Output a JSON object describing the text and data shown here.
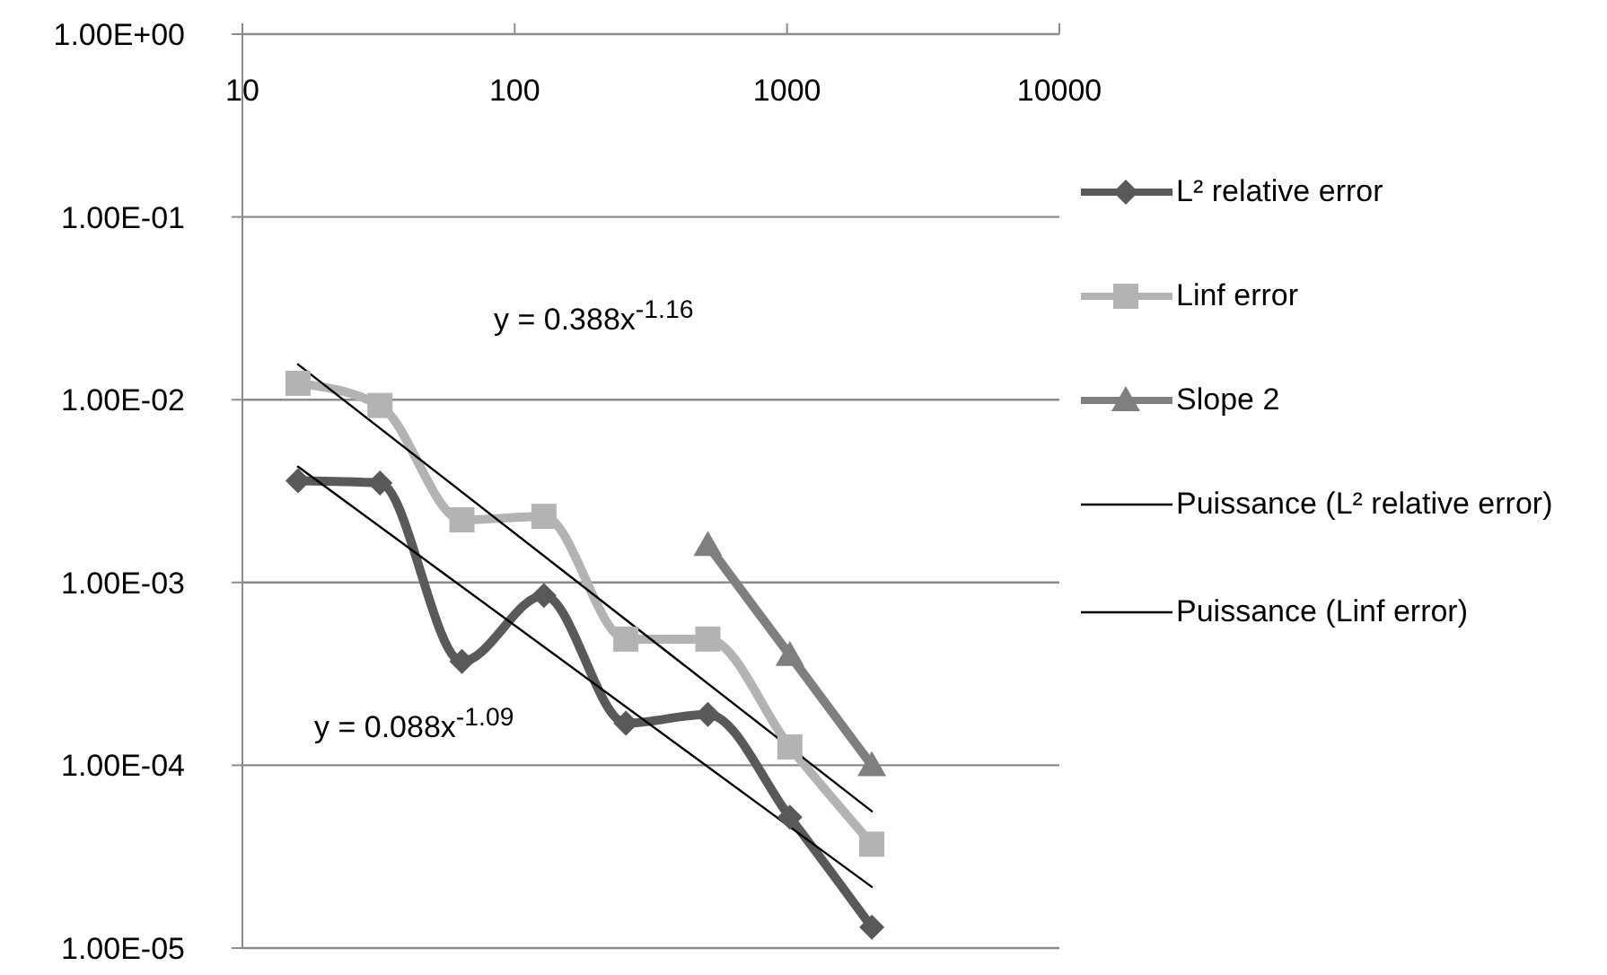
{
  "chart_data": {
    "type": "line",
    "log": "xy",
    "grid": "y",
    "legend": "right",
    "line_style": "solid",
    "xlim": [
      10,
      10000
    ],
    "xticks": [
      10,
      100,
      1000,
      10000
    ],
    "ylim": [
      1e-05,
      1
    ],
    "yticks": [
      {
        "value": 1,
        "label": "1.00E+00"
      },
      {
        "value": 0.1,
        "label": "1.00E-01"
      },
      {
        "value": 0.01,
        "label": "1.00E-02"
      },
      {
        "value": 0.001,
        "label": "1.00E-03"
      },
      {
        "value": 0.0001,
        "label": "1.00E-04"
      },
      {
        "value": 1e-05,
        "label": "1.00E-05"
      }
    ],
    "x": [
      16,
      32,
      64,
      128,
      256,
      512,
      1024,
      2048
    ],
    "series": [
      {
        "name": "L² relative error",
        "color": "#595959",
        "marker": "diamond",
        "values": [
          0.0036,
          0.0035,
          0.00037,
          0.00085,
          0.00017,
          0.00019,
          5.2e-05,
          1.3e-05
        ]
      },
      {
        "name": "Linf error",
        "color": "#b3b3b3",
        "marker": "square",
        "values": [
          0.0123,
          0.0093,
          0.0022,
          0.0023,
          0.00049,
          0.00049,
          0.000126,
          3.7e-05
        ]
      },
      {
        "name": "Slope 2",
        "color": "#7f7f7f",
        "marker": "triangle",
        "x": [
          512,
          1024,
          2048
        ],
        "values": [
          0.0016,
          0.0004,
          0.0001
        ]
      },
      {
        "name": "Puissance (L² relative error)",
        "color": "#000000",
        "marker": "none",
        "x": [
          16,
          2048
        ],
        "values": [
          0.0043,
          2.16e-05
        ]
      },
      {
        "name": "Puissance (Linf error)",
        "color": "#000000",
        "marker": "none",
        "x": [
          16,
          2048
        ],
        "values": [
          0.0156,
          5.6e-05
        ]
      }
    ],
    "annotations": [
      "y = 0.388x$^{-1.16}$",
      "y = 0.088x$^{-1.09}$"
    ]
  }
}
